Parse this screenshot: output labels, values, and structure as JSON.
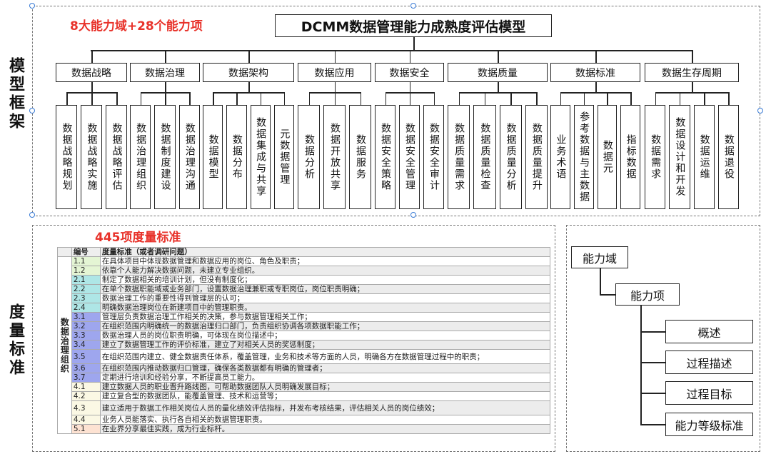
{
  "side_labels": {
    "model": "模型框架",
    "measure": "度量标准"
  },
  "top": {
    "caption": "8大能力域+28个能力项",
    "title": "DCMM数据管理能力成熟度评估模型"
  },
  "domains": [
    {
      "name": "数据战略",
      "items": [
        "数据战略规划",
        "数据战略实施",
        "数据战略评估"
      ]
    },
    {
      "name": "数据治理",
      "items": [
        "数据治理组织",
        "数据制度建设",
        "数据治理沟通"
      ]
    },
    {
      "name": "数据架构",
      "items": [
        "数据模型",
        "数据分布",
        "数据集成与共享",
        "元数据管理"
      ]
    },
    {
      "name": "数据应用",
      "items": [
        "数据分析",
        "数据开放共享",
        "数据服务"
      ]
    },
    {
      "name": "数据安全",
      "items": [
        "数据安全策略",
        "数据安全管理",
        "数据安全审计"
      ]
    },
    {
      "name": "数据质量",
      "items": [
        "数据质量需求",
        "数据质量检查",
        "数据质量分析",
        "数据质量提升"
      ]
    },
    {
      "name": "数据标准",
      "items": [
        "业务术语",
        "参考数据与主数据",
        "数据元",
        "指标数据"
      ]
    },
    {
      "name": "数据生存周期",
      "items": [
        "数据需求",
        "数据设计和开发",
        "数据运维",
        "数据退役"
      ]
    }
  ],
  "measure": {
    "caption": "445项度量标准",
    "headers": [
      "编号",
      "度量标准（或者调研问题）"
    ],
    "group": "数据治理组织",
    "rows": [
      {
        "id": "1.1",
        "text": "在具体项目中体现数据管理和数据应用的岗位、角色及职责；",
        "color": "#e4f5d4"
      },
      {
        "id": "1.2",
        "text": "依靠个人能力解决数据问题，未建立专业组织。",
        "color": "#e4f5d4"
      },
      {
        "id": "2.1",
        "text": "制定了数据相关的培训计划，但没有制度化；",
        "color": "#aee6e6"
      },
      {
        "id": "2.2",
        "text": "在单个数据职能域或业务部门，设置数据治理兼职或专职岗位，岗位职责明确；",
        "color": "#aee6e6"
      },
      {
        "id": "2.3",
        "text": "数据治理工作的重要性得到管理层的认可；",
        "color": "#aee6e6"
      },
      {
        "id": "2.4",
        "text": "明确数据治理岗位在新建项目中的管理职责。",
        "color": "#aee6e6"
      },
      {
        "id": "3.1",
        "text": "管理层负责数据治理工作相关的决策，参与数据管理相关工作；",
        "color": "#9ea6ee"
      },
      {
        "id": "3.2",
        "text": "在组织范围内明确统一的数据治理归口部门，负责组织协调各项数据职能工作；",
        "color": "#9ea6ee"
      },
      {
        "id": "3.3",
        "text": "数据治理人员的岗位职责明确，可体现在岗位描述中；",
        "color": "#9ea6ee"
      },
      {
        "id": "3.4",
        "text": "建立了数据管理工作的评价标准，建立了对相关人员的奖惩制度；",
        "color": "#9ea6ee"
      },
      {
        "id": "3.5",
        "text": "在组织范围内建立、健全数据责任体系，覆盖管理，业务和技术等方面的人员，明确各方在数据管理过程中的职责；",
        "color": "#9ea6ee",
        "tall": true
      },
      {
        "id": "3.6",
        "text": "在组织范围内推动数据归口管理，确保各类数据都有明确的管理者；",
        "color": "#9ea6ee"
      },
      {
        "id": "3.7",
        "text": "定期进行培训和经验分享，不断提高员工能力。",
        "color": "#9ea6ee"
      },
      {
        "id": "4.1",
        "text": "建立数据人员的职业晋升路线图，可帮助数据团队人员明确发展目标；",
        "color": "#fbf8e4"
      },
      {
        "id": "4.2",
        "text": "建立复合型的数据团队，能覆盖管理、技术和运营等；",
        "color": "#fbf8e4"
      },
      {
        "id": "4.3",
        "text": "建立适用于数据工作相关岗位人员的量化绩效评估指标，并发布考核结果，评估相关人员的岗位绩效；",
        "color": "#fbf8e4",
        "tall": true
      },
      {
        "id": "4.4",
        "text": "业务人员能落实、执行各自相关的数据管理职责。",
        "color": "#fbf8e4"
      },
      {
        "id": "5.1",
        "text": "在业界分享最佳实践，成为行业标杆。",
        "color": "#fde2d2"
      }
    ]
  },
  "structure": {
    "domain": "能力域",
    "item": "能力项",
    "children": [
      "概述",
      "过程描述",
      "过程目标",
      "能力等级标准"
    ]
  }
}
